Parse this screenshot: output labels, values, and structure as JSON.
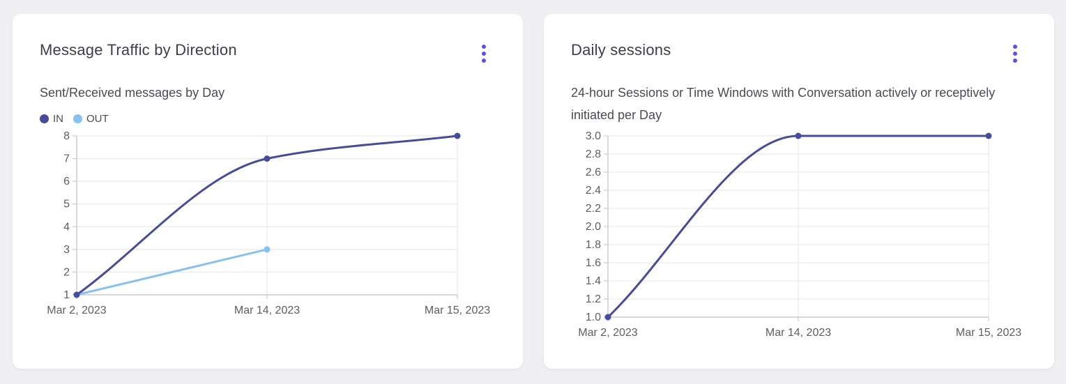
{
  "colors": {
    "accent": "#5a50f0",
    "grid": "#e9e9ed",
    "axis": "#c9cad1",
    "tick_text": "#5c5d64"
  },
  "cards": [
    {
      "title": "Message Traffic by Direction",
      "subtitle": "Sent/Received messages by Day"
    },
    {
      "title": "Daily sessions",
      "subtitle": "24-hour Sessions or Time Windows with Conversation actively or receptively initiated per Day"
    }
  ],
  "chart_data": [
    {
      "type": "line",
      "title": "Message Traffic by Direction",
      "subtitle": "Sent/Received messages by Day",
      "x": [
        "Mar 2, 2023",
        "Mar 14, 2023",
        "Mar 15, 2023"
      ],
      "series": [
        {
          "name": "IN",
          "color": "#474b9b",
          "values": [
            1,
            7,
            8
          ]
        },
        {
          "name": "OUT",
          "color": "#85c2f0",
          "values": [
            1,
            3,
            null
          ]
        }
      ],
      "ylim": [
        1,
        8
      ],
      "y_tick_values": [
        1,
        2,
        3,
        4,
        5,
        6,
        7,
        8
      ],
      "y_tick_labels": [
        "1",
        "2",
        "3",
        "4",
        "5",
        "6",
        "7",
        "8"
      ],
      "grid": true,
      "legend_position": "top-left",
      "interpolation": "monotone"
    },
    {
      "type": "line",
      "title": "Daily sessions",
      "subtitle": "24-hour Sessions or Time Windows with Conversation actively or receptively initiated per Day",
      "x": [
        "Mar 2, 2023",
        "Mar 14, 2023",
        "Mar 15, 2023"
      ],
      "series": [
        {
          "name": "Daily sessions",
          "color": "#474b9b",
          "values": [
            1,
            3,
            3
          ]
        }
      ],
      "ylim": [
        1,
        3
      ],
      "y_tick_values": [
        1,
        1.2,
        1.4,
        1.6,
        1.8,
        2,
        2.2,
        2.4,
        2.6,
        2.8,
        3
      ],
      "y_tick_labels": [
        "1.0",
        "1.2",
        "1.4",
        "1.6",
        "1.8",
        "2.0",
        "2.2",
        "2.4",
        "2.6",
        "2.8",
        "3.0"
      ],
      "grid": true,
      "legend_position": "none",
      "interpolation": "monotone"
    }
  ]
}
